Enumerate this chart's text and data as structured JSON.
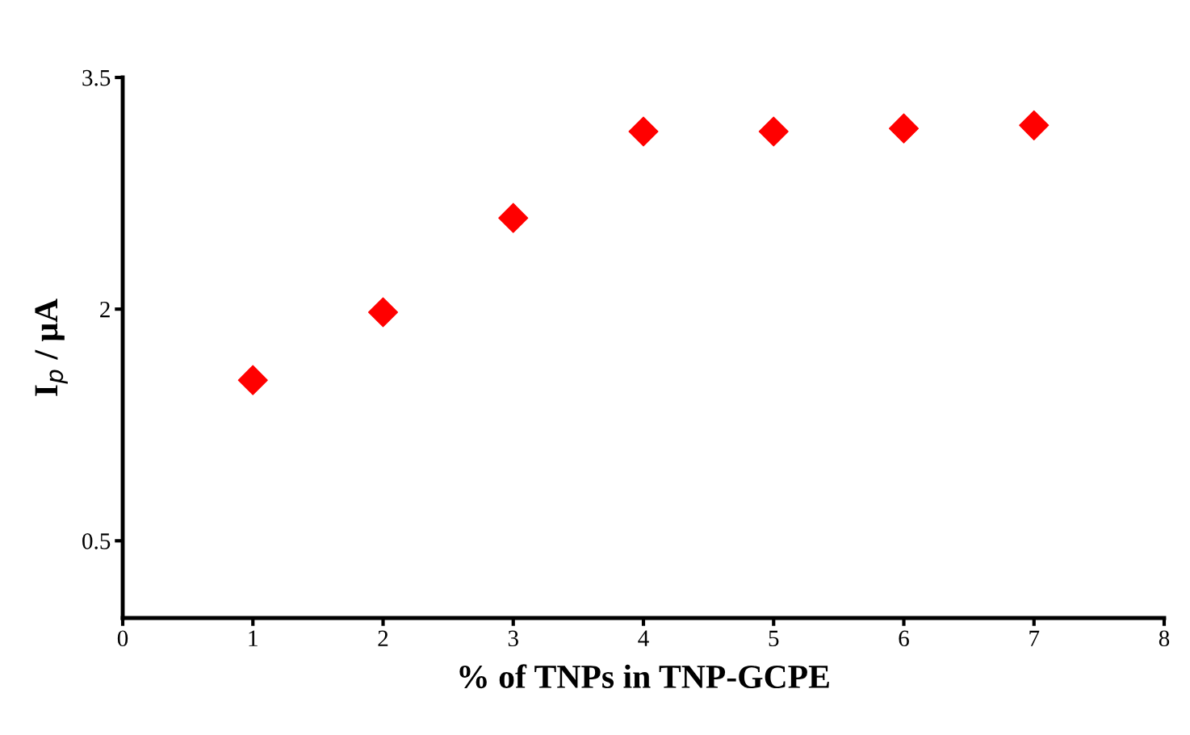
{
  "chart_data": {
    "type": "scatter",
    "xlabel": "% of TNPs in TNP-GCPE",
    "ylabel": "I$_{p}$ / μA",
    "x": [
      1,
      2,
      3,
      4,
      5,
      6,
      7
    ],
    "series": [
      {
        "color": "#ff0000",
        "values": [
          1.54,
          1.98,
          2.59,
          3.15,
          3.15,
          3.17,
          3.19
        ]
      }
    ],
    "xlim": [
      0,
      8
    ],
    "xticks": [
      0,
      1,
      2,
      3,
      4,
      5,
      6,
      7,
      8
    ],
    "ylim": [
      0,
      3.5
    ],
    "yticks": [
      0.5,
      2,
      3.5
    ],
    "marker": "diamond",
    "grid": false,
    "legend": false
  }
}
